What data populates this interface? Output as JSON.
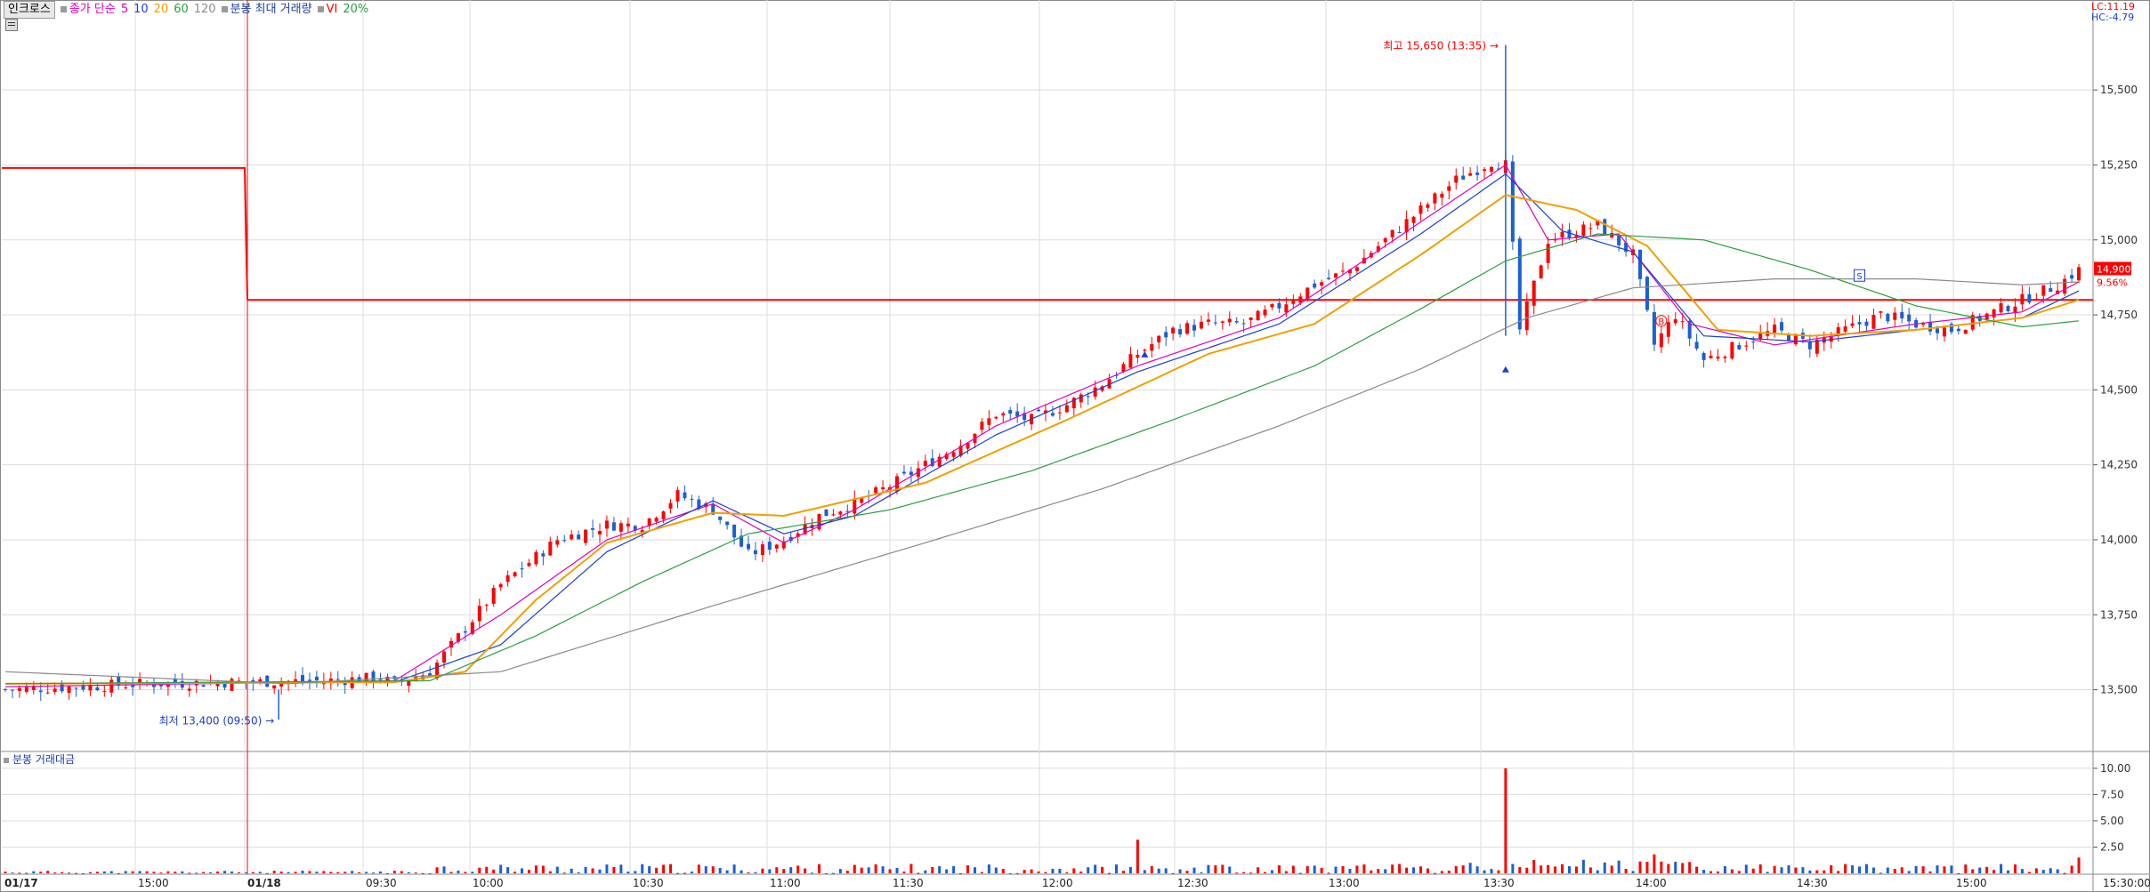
{
  "legend": {
    "stock_name": "인크로스",
    "ma_label": "종가 단순",
    "ma_periods": [
      "5",
      "10",
      "20",
      "60",
      "120"
    ],
    "ma_colors": [
      "#e000c0",
      "#1b3fd6",
      "#f0a000",
      "#2aa040",
      "#8a8a8a"
    ],
    "volume_label": "분봉 최대 거래량",
    "vi_label": "VI",
    "vi_value": "20%"
  },
  "sub_legend": {
    "label": "분봉 거래대금"
  },
  "corner": {
    "lc": "LC:11.19",
    "hc": "HC:-4.79"
  },
  "colors": {
    "up": "#ff0000",
    "down": "#1a5fd6",
    "grid": "#dcdcdc",
    "axis_bg": "#ffffff",
    "ref_line": "#ff0000"
  },
  "chart_data": [
    {
      "type": "candlestick",
      "title": "",
      "ylim": [
        13300,
        15800
      ],
      "y_ticks": [
        "15,500",
        "15,250",
        "15,000",
        "14,750",
        "14,500",
        "14,250",
        "14,000",
        "13,750",
        "13,500"
      ],
      "x_ticks": [
        "01/17",
        "15:00",
        "01/18",
        "09:30",
        "10:00",
        "10:30",
        "11:00",
        "11:30",
        "12:00",
        "12:30",
        "13:00",
        "13:30",
        "14:00",
        "14:30",
        "15:00",
        "15:30:00"
      ],
      "current_price": "14,900",
      "current_change": "9.56%",
      "reference_price": 14800,
      "previous_day_reference": 15240,
      "annotations": {
        "high": "최고 15,650 (13:35)",
        "low": "최저 13,400 (09:50)",
        "buy_marker": "B",
        "sell_marker": "S"
      },
      "close_path": [
        [
          0,
          13500
        ],
        [
          20,
          13520
        ],
        [
          45,
          13530
        ],
        [
          53,
          13540
        ],
        [
          55,
          13520
        ],
        [
          60,
          13560
        ],
        [
          70,
          13850
        ],
        [
          78,
          14000
        ],
        [
          85,
          14050
        ],
        [
          90,
          14050
        ],
        [
          95,
          14150
        ],
        [
          100,
          14100
        ],
        [
          105,
          13950
        ],
        [
          110,
          14000
        ],
        [
          115,
          14080
        ],
        [
          120,
          14120
        ],
        [
          125,
          14180
        ],
        [
          130,
          14250
        ],
        [
          135,
          14320
        ],
        [
          140,
          14420
        ],
        [
          145,
          14400
        ],
        [
          150,
          14450
        ],
        [
          155,
          14520
        ],
        [
          160,
          14620
        ],
        [
          165,
          14700
        ],
        [
          170,
          14720
        ],
        [
          175,
          14720
        ],
        [
          180,
          14780
        ],
        [
          185,
          14850
        ],
        [
          190,
          14900
        ],
        [
          195,
          15000
        ],
        [
          200,
          15100
        ],
        [
          205,
          15200
        ],
        [
          210,
          15260
        ],
        [
          212,
          15250
        ],
        [
          214,
          14700
        ],
        [
          218,
          15000
        ],
        [
          225,
          15050
        ],
        [
          230,
          14950
        ],
        [
          233,
          14650
        ],
        [
          236,
          14750
        ],
        [
          240,
          14600
        ],
        [
          245,
          14650
        ],
        [
          250,
          14700
        ],
        [
          255,
          14650
        ],
        [
          260,
          14700
        ],
        [
          265,
          14750
        ],
        [
          270,
          14720
        ],
        [
          275,
          14700
        ],
        [
          280,
          14750
        ],
        [
          285,
          14800
        ],
        [
          290,
          14850
        ],
        [
          293,
          14900
        ]
      ],
      "ma_curves": [
        {
          "period": "5",
          "points": [
            [
              0,
              13510
            ],
            [
              55,
              13530
            ],
            [
              70,
              13750
            ],
            [
              85,
              14000
            ],
            [
              100,
              14120
            ],
            [
              110,
              13990
            ],
            [
              120,
              14100
            ],
            [
              140,
              14380
            ],
            [
              160,
              14580
            ],
            [
              180,
              14740
            ],
            [
              200,
              15060
            ],
            [
              212,
              15250
            ],
            [
              218,
              15000
            ],
            [
              228,
              15020
            ],
            [
              238,
              14720
            ],
            [
              250,
              14650
            ],
            [
              270,
              14720
            ],
            [
              285,
              14760
            ],
            [
              293,
              14860
            ]
          ]
        },
        {
          "period": "10",
          "points": [
            [
              0,
              13520
            ],
            [
              55,
              13525
            ],
            [
              70,
              13650
            ],
            [
              85,
              13960
            ],
            [
              100,
              14130
            ],
            [
              110,
              14020
            ],
            [
              120,
              14080
            ],
            [
              140,
              14350
            ],
            [
              160,
              14560
            ],
            [
              180,
              14720
            ],
            [
              200,
              15020
            ],
            [
              212,
              15220
            ],
            [
              220,
              15030
            ],
            [
              230,
              14960
            ],
            [
              240,
              14680
            ],
            [
              255,
              14660
            ],
            [
              270,
              14700
            ],
            [
              285,
              14740
            ],
            [
              293,
              14830
            ]
          ]
        },
        {
          "period": "20",
          "points": [
            [
              0,
              13520
            ],
            [
              55,
              13525
            ],
            [
              65,
              13560
            ],
            [
              75,
              13800
            ],
            [
              85,
              13990
            ],
            [
              100,
              14090
            ],
            [
              110,
              14080
            ],
            [
              130,
              14190
            ],
            [
              150,
              14400
            ],
            [
              170,
              14620
            ],
            [
              185,
              14720
            ],
            [
              200,
              14950
            ],
            [
              212,
              15150
            ],
            [
              222,
              15100
            ],
            [
              232,
              14980
            ],
            [
              242,
              14700
            ],
            [
              255,
              14680
            ],
            [
              270,
              14700
            ],
            [
              285,
              14740
            ],
            [
              293,
              14800
            ]
          ]
        },
        {
          "period": "60",
          "points": [
            [
              0,
              13520
            ],
            [
              60,
              13530
            ],
            [
              75,
              13680
            ],
            [
              90,
              13860
            ],
            [
              105,
              14020
            ],
            [
              125,
              14100
            ],
            [
              145,
              14230
            ],
            [
              165,
              14400
            ],
            [
              185,
              14580
            ],
            [
              200,
              14770
            ],
            [
              212,
              14930
            ],
            [
              225,
              15020
            ],
            [
              240,
              15000
            ],
            [
              255,
              14900
            ],
            [
              270,
              14780
            ],
            [
              285,
              14710
            ],
            [
              293,
              14730
            ]
          ]
        },
        {
          "period": "120",
          "points": [
            [
              0,
              13560
            ],
            [
              40,
              13520
            ],
            [
              70,
              13560
            ],
            [
              100,
              13780
            ],
            [
              130,
              13990
            ],
            [
              155,
              14170
            ],
            [
              180,
              14380
            ],
            [
              200,
              14570
            ],
            [
              215,
              14740
            ],
            [
              230,
              14840
            ],
            [
              250,
              14870
            ],
            [
              270,
              14870
            ],
            [
              285,
              14850
            ],
            [
              293,
              14860
            ]
          ]
        }
      ]
    },
    {
      "type": "bar",
      "title": "",
      "ylim": [
        0,
        10.5
      ],
      "y_ticks": [
        "10.00",
        "7.50",
        "5.00",
        "2.50"
      ],
      "spikes": [
        [
          160,
          3.2
        ],
        [
          212,
          10.0
        ],
        [
          233,
          1.8
        ],
        [
          293,
          1.5
        ]
      ]
    }
  ]
}
